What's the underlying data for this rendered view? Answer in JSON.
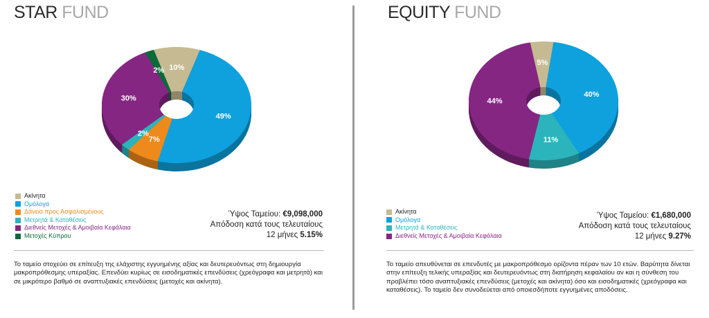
{
  "star": {
    "title_main": "STAR",
    "title_sub": "FUND",
    "chart_data": {
      "type": "pie",
      "donut": true,
      "categories": [
        "Ακίνητα",
        "Ομόλογα",
        "Δάνεια προς Ασφαλισμένους",
        "Μετρητά & Καταθέσεις",
        "Διεθνείς Μετοχές & Αμοιβαία Κεφάλαια",
        "Μετοχές Κύπρου"
      ],
      "values": [
        10,
        49,
        7,
        2,
        30,
        2
      ],
      "labels": [
        "10%",
        "49%",
        "7%",
        "",
        "30%",
        "2%"
      ],
      "extra_labels": [
        "2%"
      ],
      "colors": [
        "#c6ba92",
        "#0ea1dd",
        "#ee8a1b",
        "#2bb4bc",
        "#862683",
        "#0b6a38"
      ]
    },
    "legend": [
      "Ακίνητα",
      "Ομόλογα",
      "Δάνεια προς Ασφαλισμένους",
      "Μετρητά & Καταθέσεις",
      "Διεθνείς Μετοχές & Αμοιβαία Κεφάλαια",
      "Μετοχές Κύπρου"
    ],
    "stats": {
      "size_label": "Ύψος Ταμείου:",
      "size_value": "€9,098,000",
      "return_label_1": "Απόδοση κατά τους τελευταίους",
      "return_label_2": "12 μήνες",
      "return_value": "5.15%"
    },
    "description": "Το ταμείο στοχεύει σε επίτευξη της ελάχιστης εγγυημένης αξίας και δευτερευόντως στη δημιουργία μακροπρόθεσμης υπεραξίας. Επενδύει κυρίως σε εισοδηματικές επενδύσεις (χρεόγραφα και μετρητά) και σε μικρότερο βαθμό σε αναπτυξιακές επενδύσεις (μετοχές και ακίνητα)."
  },
  "equity": {
    "title_main": "EQUITY",
    "title_sub": "FUND",
    "chart_data": {
      "type": "pie",
      "donut": true,
      "categories": [
        "Ακίνητα",
        "Ομόλογα",
        "Μετρητά & Καταθέσεις",
        "Διεθνείς Μετοχές & Αμοιβαία Κεφάλαια"
      ],
      "values": [
        5,
        40,
        11,
        44
      ],
      "labels": [
        "5%",
        "40%",
        "11%",
        "44%"
      ],
      "colors": [
        "#c6ba92",
        "#0ea1dd",
        "#2bb4bc",
        "#862683"
      ]
    },
    "legend": [
      "Ακίνητα",
      "Ομόλογα",
      "Μετρητά & Καταθέσεις",
      "Διεθνείς Μετοχές & Αμοιβαία Κεφάλαια"
    ],
    "stats": {
      "size_label": "Ύψος Ταμείου:",
      "size_value": "€1,680,000",
      "return_label_1": "Απόδοση κατά τους τελευταίους",
      "return_label_2": "12 μήνες",
      "return_value": "9.27%"
    },
    "description": "Το ταμείο απευθύνεται σε επενδυτές με μακροπρόθεσμο ορίζοντα πέραν των 10 ετών. Βαρύτητα δίνεται στην επίτευξη τελικής υπεραξίας και δευτερευόντως στη διατήρηση κεφαλαίου αν και η σύνθεση του προβλέπει τόσο αναπτυξιακές επενδύσεις (μετοχές και ακίνητα) όσο και εισοδηματικές (χρεόγραφα και καταθέσεις). Το ταμείο δεν συνοδεύεται από οποιεσδήποτε εγγυημένες αποδόσεις."
  }
}
